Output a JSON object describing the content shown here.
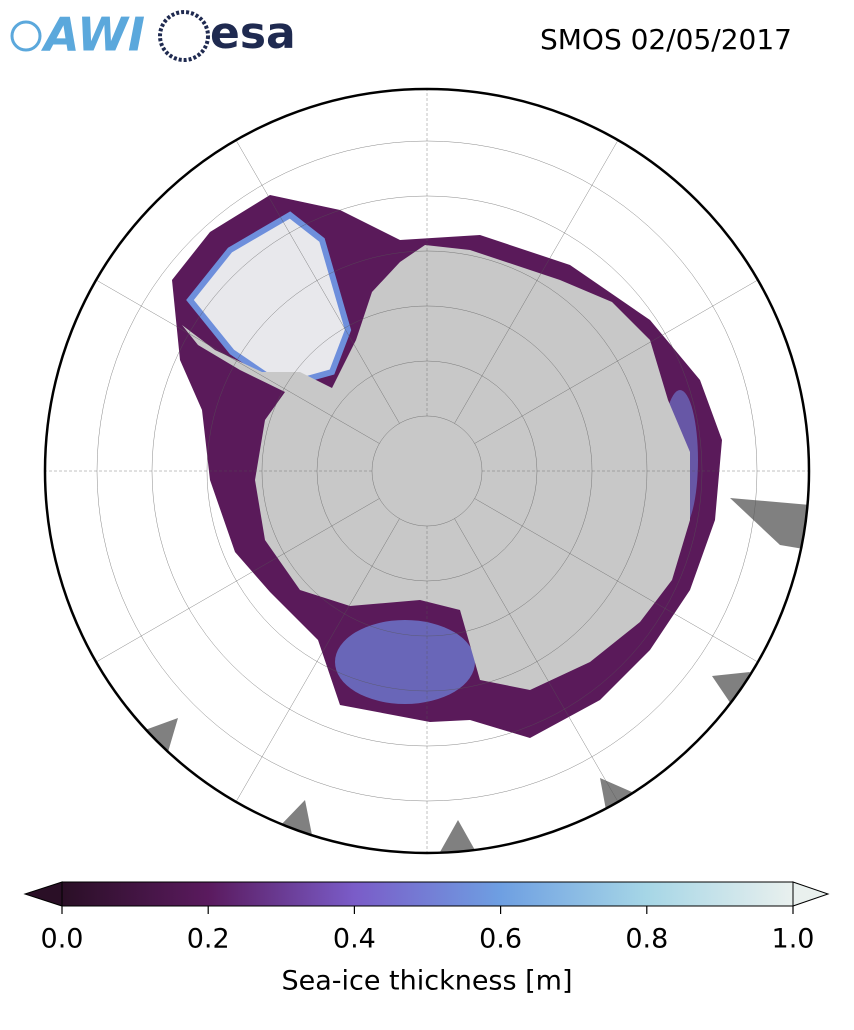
{
  "header": {
    "logos": [
      "AWI",
      "esa"
    ],
    "title": "SMOS 02/05/2017"
  },
  "colorbar": {
    "label": "Sea-ice thickness [m]",
    "range": [
      0,
      1
    ],
    "ticks": [
      {
        "value": 0,
        "label": "0.0"
      },
      {
        "value": 0.2,
        "label": "0.2"
      },
      {
        "value": 0.4,
        "label": "0.4"
      },
      {
        "value": 0.6,
        "label": "0.6"
      },
      {
        "value": 0.8,
        "label": "0.8"
      },
      {
        "value": 1,
        "label": "1.0"
      }
    ],
    "colors": [
      "#2a0f26",
      "#5a1a5e",
      "#7a5cc8",
      "#6e9fe2",
      "#a6d6e6",
      "#e9f0ee"
    ]
  }
}
